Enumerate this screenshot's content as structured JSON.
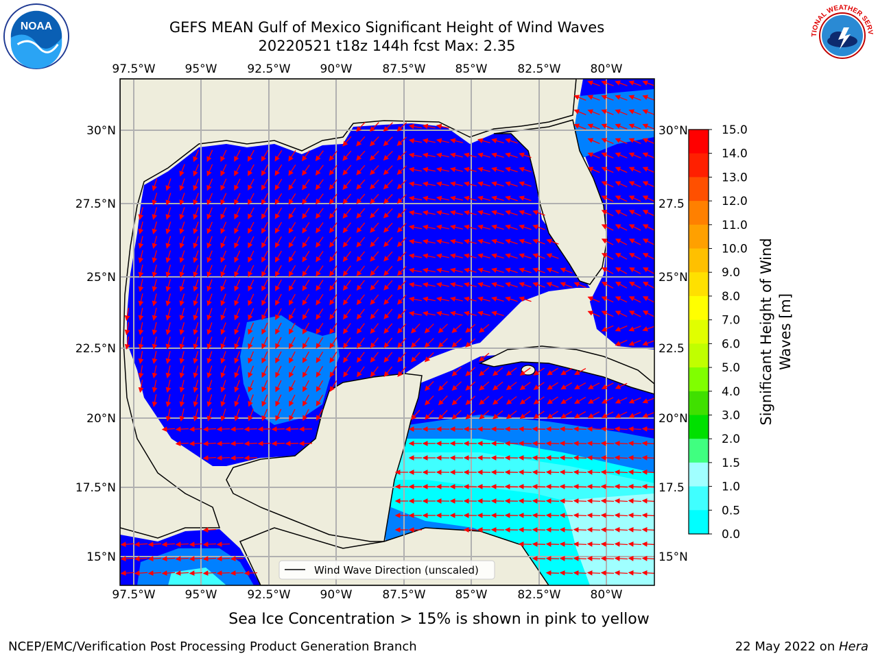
{
  "header": {
    "title_line1": "GEFS MEAN Gulf of Mexico Significant Height of Wind Waves",
    "title_line2": "20220521 t18z 144h fcst   Max: 2.35"
  },
  "logos": {
    "left": "NOAA",
    "right": "NATIONAL WEATHER SERVICE"
  },
  "map": {
    "lon_labels": [
      "97.5°W",
      "95°W",
      "92.5°W",
      "90°W",
      "87.5°W",
      "85°W",
      "82.5°W",
      "80°W"
    ],
    "lat_labels_left": [
      "30°N",
      "27.5°N",
      "25°N",
      "22.5°N",
      "20°N",
      "17.5°N",
      "15°N"
    ],
    "lat_labels_right": [
      "30°N",
      "27.5",
      "25°N",
      "22.5",
      "20°N",
      "17.5",
      "15°N"
    ],
    "legend_label": "Wind Wave Direction (unscaled)",
    "colors": {
      "land": "#eeeddc",
      "ocean_low": "#0000ff",
      "ocean_mid": "#0080ff",
      "ocean_high": "#00ffff",
      "ocean_higher": "#40ffff",
      "ocean_top": "#a0ffff",
      "arrow": "#ff0000",
      "grid": "#b0b0b0"
    }
  },
  "colorbar": {
    "ticks": [
      "15.0",
      "14.0",
      "13.0",
      "12.0",
      "11.0",
      "10.0",
      "9.0",
      "8.0",
      "7.0",
      "6.0",
      "5.0",
      "4.0",
      "3.0",
      "2.0",
      "1.5",
      "1.0",
      "0.5",
      "0.0"
    ],
    "colors_top_to_bottom": [
      "#ff0000",
      "#ff2000",
      "#ff5000",
      "#ff8000",
      "#ffa000",
      "#ffc000",
      "#ffe000",
      "#ffff00",
      "#e0ff00",
      "#c0ff00",
      "#80ff00",
      "#40e000",
      "#00e000",
      "#40ff80",
      "#a0ffff",
      "#40ffff",
      "#00ffff",
      "#0080ff",
      "#0000ff"
    ],
    "label_line1": "Significant Height of Wind",
    "label_line2": "Waves [m]"
  },
  "footer": {
    "ice_note": "Sea Ice Concentration > 15% is shown in pink to yellow",
    "credit_left": "NCEP/EMC/Verification Post Processing Product Generation Branch",
    "credit_right_date": "22 May 2022 on ",
    "credit_right_host": "Hera"
  }
}
